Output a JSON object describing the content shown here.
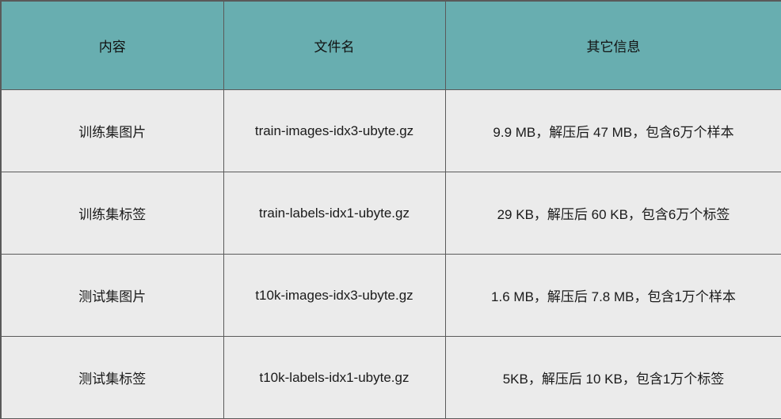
{
  "table": {
    "headers": [
      "内容",
      "文件名",
      "其它信息"
    ],
    "rows": [
      [
        "训练集图片",
        "train-images-idx3-ubyte.gz",
        "9.9 MB，解压后 47 MB，包含6万个样本"
      ],
      [
        "训练集标签",
        "train-labels-idx1-ubyte.gz",
        "29 KB，解压后 60 KB，包含6万个标签"
      ],
      [
        "测试集图片",
        "t10k-images-idx3-ubyte.gz",
        "1.6 MB，解压后 7.8 MB，包含1万个样本"
      ],
      [
        "测试集标签",
        "t10k-labels-idx1-ubyte.gz",
        "5KB，解压后 10 KB，包含1万个标签"
      ]
    ]
  },
  "colors": {
    "header_bg": "#68aeb0",
    "cell_bg": "#ebebeb",
    "border": "#5a5a5a"
  }
}
